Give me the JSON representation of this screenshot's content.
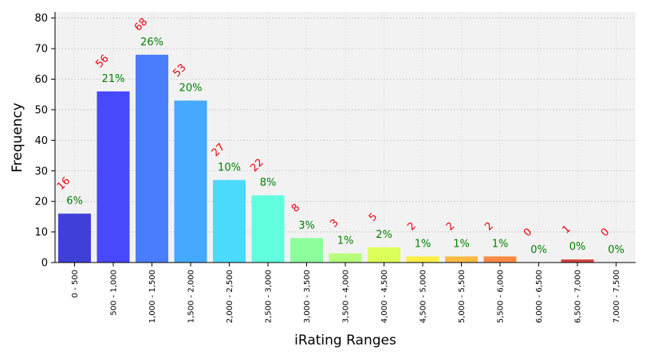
{
  "chart_data": {
    "type": "bar",
    "xlabel": "iRating Ranges",
    "ylabel": "Frequency",
    "ylim": [
      0,
      82
    ],
    "yticks": [
      0,
      10,
      20,
      30,
      40,
      50,
      60,
      70,
      80
    ],
    "grid": true,
    "categories": [
      "0 - 500",
      "500 - 1,000",
      "1,000 - 1,500",
      "1,500 - 2,000",
      "2,000 - 2,500",
      "2,500 - 3,000",
      "3,000 - 3,500",
      "3,500 - 4,000",
      "4,000 - 4,500",
      "4,500 - 5,000",
      "5,000 - 5,500",
      "5,500 - 6,000",
      "6,000 - 6,500",
      "6,500 - 7,000",
      "7,000 - 7,500"
    ],
    "values": [
      16,
      56,
      68,
      53,
      27,
      22,
      8,
      3,
      5,
      2,
      2,
      2,
      0,
      1,
      0
    ],
    "count_labels": [
      "16",
      "56",
      "68",
      "53",
      "27",
      "22",
      "8",
      "3",
      "5",
      "2",
      "2",
      "2",
      "0",
      "1",
      "0"
    ],
    "percent_labels": [
      "6%",
      "21%",
      "26%",
      "20%",
      "10%",
      "8%",
      "3%",
      "1%",
      "2%",
      "1%",
      "1%",
      "1%",
      "0%",
      "0%",
      "0%"
    ],
    "colors": [
      "#4040d8",
      "#4848fc",
      "#4a7dfd",
      "#45a9fd",
      "#4bdafb",
      "#61ffdd",
      "#8cff9c",
      "#b7ff7a",
      "#dcff5a",
      "#fdee45",
      "#feba45",
      "#fe8a45",
      "#f25a42",
      "#d8403c",
      "#b83030"
    ]
  }
}
